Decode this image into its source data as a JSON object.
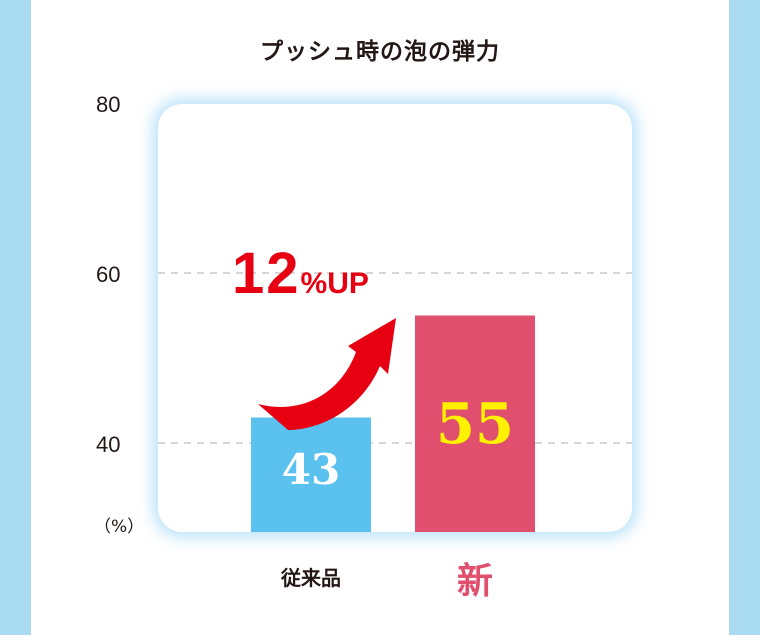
{
  "chart_data": {
    "type": "bar",
    "title": "プッシュ時の泡の弾力",
    "categories": [
      "従来品",
      "新"
    ],
    "values": [
      43,
      55
    ],
    "data_labels": [
      "43",
      "55"
    ],
    "ylim": [
      30,
      80
    ],
    "yticks": [
      "40",
      "60",
      "80"
    ],
    "ytick_values": [
      40,
      60,
      80
    ],
    "gridlines": [
      40,
      60
    ],
    "unit": "（%）",
    "annotation": {
      "number": "12",
      "suffix": "%UP"
    },
    "grid": true,
    "legend": "none"
  },
  "colors": {
    "background": "#a9dcf3",
    "bar_old": "#5bc2ef",
    "bar_new": "#e0506e",
    "label_old": "#ffffff",
    "label_new": "#fff200",
    "category_new": "#e0506e",
    "arrow": "#e60012",
    "gridline": "#c8c8c8"
  },
  "icons": {
    "arrow": "up-right-curved-arrow-icon"
  }
}
